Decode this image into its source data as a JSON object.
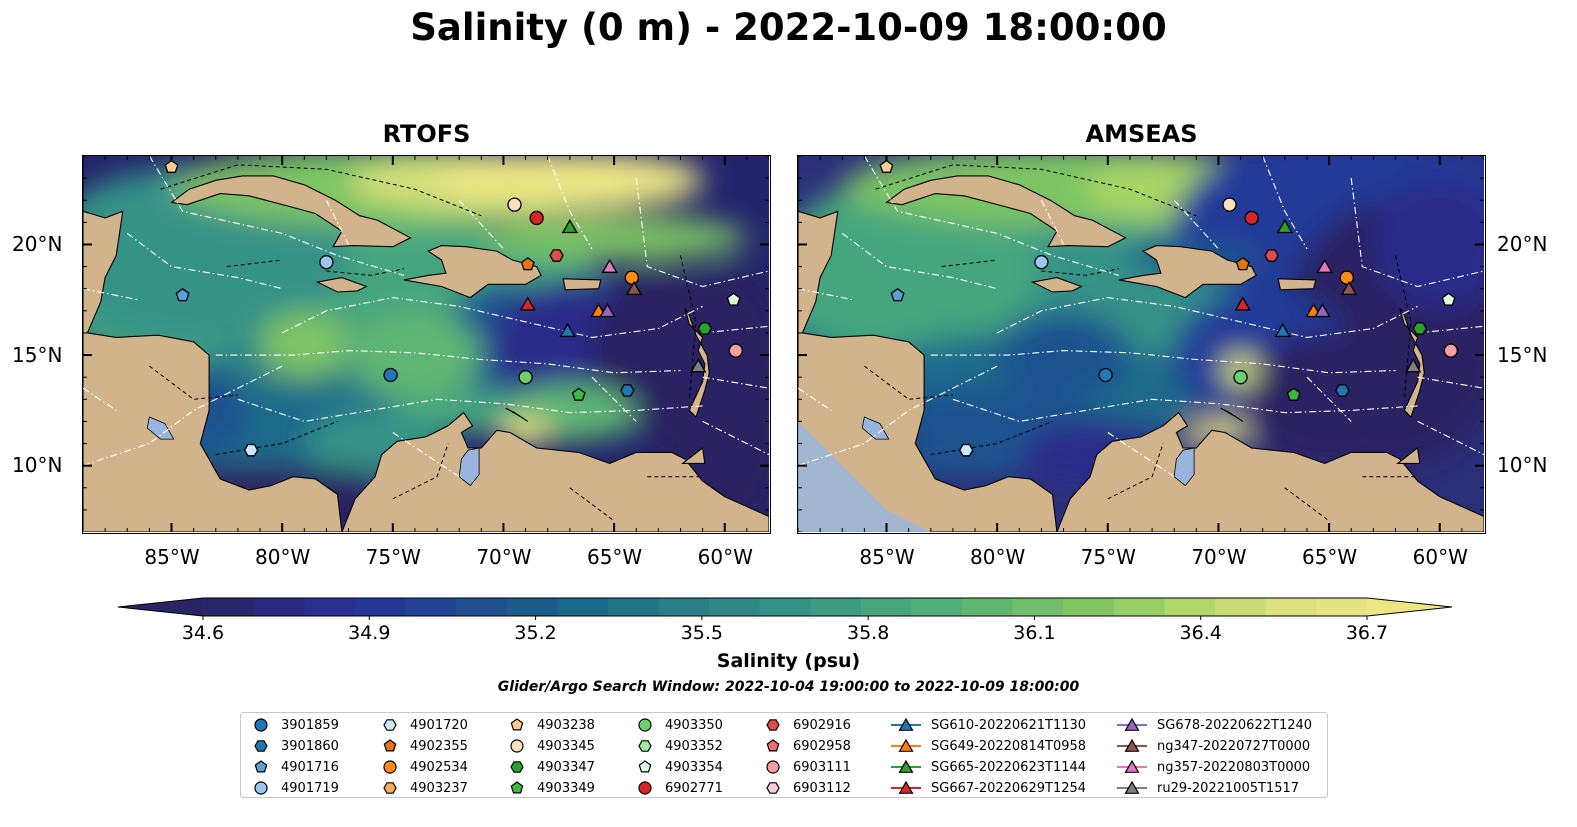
{
  "title": "Salinity (0 m) - 2022-10-09 18:00:00",
  "panels": [
    {
      "title": "RTOFS",
      "background": "#23246c"
    },
    {
      "title": "AMSEAS",
      "background": "#2b2f7a"
    }
  ],
  "map_extent": {
    "lon": [
      -89,
      -58
    ],
    "lat": [
      7,
      24
    ]
  },
  "lon_ticks": [
    "85°W",
    "80°W",
    "75°W",
    "70°W",
    "65°W",
    "60°W"
  ],
  "lon_tick_values": [
    -85,
    -80,
    -75,
    -70,
    -65,
    -60
  ],
  "lat_ticks": [
    "20°N",
    "15°N",
    "10°N"
  ],
  "lat_tick_values": [
    20,
    15,
    10
  ],
  "colors": {
    "land": "#d2b48c",
    "water_feature": "#9ab5dd"
  },
  "colorbar": {
    "label": "Salinity (psu)",
    "ticks": [
      "34.6",
      "34.9",
      "35.2",
      "35.5",
      "35.8",
      "36.1",
      "36.4",
      "36.7"
    ],
    "tick_values": [
      34.6,
      34.9,
      35.2,
      35.5,
      35.8,
      36.1,
      36.4,
      36.7
    ],
    "range": [
      34.6,
      36.7
    ],
    "colormap": [
      "#292462",
      "#2a2a8a",
      "#233a98",
      "#1e528f",
      "#1a6b8b",
      "#2a7f87",
      "#349287",
      "#45a57e",
      "#5eb673",
      "#7dc564",
      "#a7d566",
      "#d6e07a",
      "#ece685"
    ]
  },
  "search_window": "Glider/Argo Search Window: 2022-10-04 19:00:00 to 2022-10-09 18:00:00",
  "legend": [
    {
      "label": "3901859",
      "marker": "circle",
      "color": "#1f77b4"
    },
    {
      "label": "3901860",
      "marker": "hexagon",
      "color": "#1f77b4"
    },
    {
      "label": "4901716",
      "marker": "pentagon",
      "color": "#5a9fd6"
    },
    {
      "label": "4901719",
      "marker": "circle",
      "color": "#9dc8ef"
    },
    {
      "label": "4901720",
      "marker": "hexagon",
      "color": "#cfe6f8"
    },
    {
      "label": "4902355",
      "marker": "pentagon",
      "color": "#e8740c"
    },
    {
      "label": "4902534",
      "marker": "circle",
      "color": "#ff8c1a"
    },
    {
      "label": "4903237",
      "marker": "hexagon",
      "color": "#ffab5e"
    },
    {
      "label": "4903238",
      "marker": "pentagon",
      "color": "#ffcc8f"
    },
    {
      "label": "4903345",
      "marker": "circle",
      "color": "#ffe1c2"
    },
    {
      "label": "4903347",
      "marker": "hexagon",
      "color": "#2ca02c"
    },
    {
      "label": "4903349",
      "marker": "pentagon",
      "color": "#3fb83f"
    },
    {
      "label": "4903350",
      "marker": "circle",
      "color": "#6cd06c"
    },
    {
      "label": "4903352",
      "marker": "hexagon",
      "color": "#a6e8a6"
    },
    {
      "label": "4903354",
      "marker": "pentagon",
      "color": "#dff7df"
    },
    {
      "label": "6902771",
      "marker": "circle",
      "color": "#d62728"
    },
    {
      "label": "6902916",
      "marker": "hexagon",
      "color": "#e04b4b"
    },
    {
      "label": "6902958",
      "marker": "pentagon",
      "color": "#ee7272"
    },
    {
      "label": "6903111",
      "marker": "circle",
      "color": "#f5a0a0"
    },
    {
      "label": "6903112",
      "marker": "hexagon",
      "color": "#fbd0d0"
    },
    {
      "label": "SG610-20220621T1130",
      "marker": "triangle",
      "color": "#1f77b4"
    },
    {
      "label": "SG649-20220814T0958",
      "marker": "triangle",
      "color": "#ff7f0e"
    },
    {
      "label": "SG665-20220623T1144",
      "marker": "triangle",
      "color": "#2ca02c"
    },
    {
      "label": "SG667-20220629T1254",
      "marker": "triangle",
      "color": "#d62728"
    },
    {
      "label": "SG678-20220622T1240",
      "marker": "triangle",
      "color": "#9467bd"
    },
    {
      "label": "ng347-20220727T0000",
      "marker": "triangle",
      "color": "#8c564b"
    },
    {
      "label": "ng357-20220803T0000",
      "marker": "triangle",
      "color": "#e377c2"
    },
    {
      "label": "ru29-20221005T1517",
      "marker": "triangle",
      "color": "#7f7f7f"
    }
  ],
  "stations": [
    {
      "id": "4903238",
      "lon": -85.0,
      "lat": 23.5
    },
    {
      "id": "4903345",
      "lon": -69.5,
      "lat": 21.8
    },
    {
      "id": "6902771",
      "lon": -68.5,
      "lat": 21.2
    },
    {
      "id": "SG665-20220623T1144",
      "lon": -67.0,
      "lat": 20.8
    },
    {
      "id": "4901719",
      "lon": -78.0,
      "lat": 19.2
    },
    {
      "id": "4902355",
      "lon": -68.9,
      "lat": 19.1
    },
    {
      "id": "6902916",
      "lon": -67.6,
      "lat": 19.5
    },
    {
      "id": "ng357-20220803T0000",
      "lon": -65.2,
      "lat": 19.0
    },
    {
      "id": "4902534",
      "lon": -64.2,
      "lat": 18.5
    },
    {
      "id": "ng347-20220727T0000",
      "lon": -64.1,
      "lat": 18.0
    },
    {
      "id": "4901716",
      "lon": -84.5,
      "lat": 17.7
    },
    {
      "id": "SG667-20220629T1254",
      "lon": -68.9,
      "lat": 17.3
    },
    {
      "id": "SG649-20220814T0958",
      "lon": -65.7,
      "lat": 17.0
    },
    {
      "id": "SG678-20220622T1240",
      "lon": -65.3,
      "lat": 17.0
    },
    {
      "id": "SG610-20220621T1130",
      "lon": -67.1,
      "lat": 16.1
    },
    {
      "id": "4903354",
      "lon": -59.6,
      "lat": 17.5
    },
    {
      "id": "4903347",
      "lon": -60.9,
      "lat": 16.2
    },
    {
      "id": "6903111",
      "lon": -59.5,
      "lat": 15.2
    },
    {
      "id": "ru29-20221005T1517",
      "lon": -61.2,
      "lat": 14.5
    },
    {
      "id": "3901859",
      "lon": -75.1,
      "lat": 14.1
    },
    {
      "id": "4903350",
      "lon": -69.0,
      "lat": 14.0
    },
    {
      "id": "4903349",
      "lon": -66.6,
      "lat": 13.2
    },
    {
      "id": "3901860",
      "lon": -64.4,
      "lat": 13.4
    },
    {
      "id": "4901720",
      "lon": -81.4,
      "lat": 10.7
    }
  ]
}
